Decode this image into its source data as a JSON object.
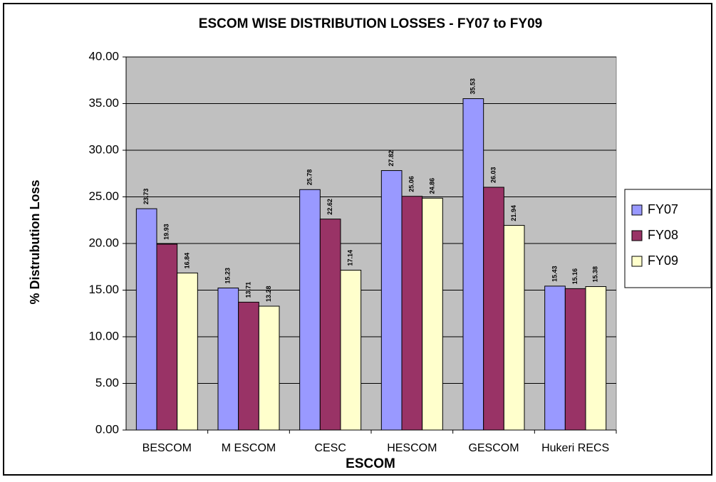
{
  "chart_data": {
    "type": "bar",
    "title": "ESCOM WISE DISTRIBUTION LOSSES - FY07 to FY09",
    "x_label": "ESCOM",
    "y_label": "% Distrubution Loss",
    "categories": [
      "BESCOM",
      "M ESCOM",
      "CESC",
      "HESCOM",
      "GESCOM",
      "Hukeri RECS"
    ],
    "series": [
      {
        "name": "FY07",
        "color": "#9999ff",
        "values": [
          23.73,
          15.23,
          25.78,
          27.82,
          35.53,
          15.43
        ]
      },
      {
        "name": "FY08",
        "color": "#993366",
        "values": [
          19.93,
          13.71,
          22.62,
          25.06,
          26.03,
          15.16
        ]
      },
      {
        "name": "FY09",
        "color": "#ffffcc",
        "values": [
          16.84,
          13.28,
          17.14,
          24.86,
          21.94,
          15.38
        ]
      }
    ],
    "ylim": [
      0,
      40
    ],
    "yticks": [
      {
        "value": 0,
        "label": "0.00"
      },
      {
        "value": 5,
        "label": "5.00"
      },
      {
        "value": 10,
        "label": "10.00"
      },
      {
        "value": 15,
        "label": "15.00"
      },
      {
        "value": 20,
        "label": "20.00"
      },
      {
        "value": 25,
        "label": "25.00"
      },
      {
        "value": 30,
        "label": "30.00"
      },
      {
        "value": 35,
        "label": "35.00"
      },
      {
        "value": 40,
        "label": "40.00"
      }
    ],
    "grid": true,
    "legend": "right"
  }
}
